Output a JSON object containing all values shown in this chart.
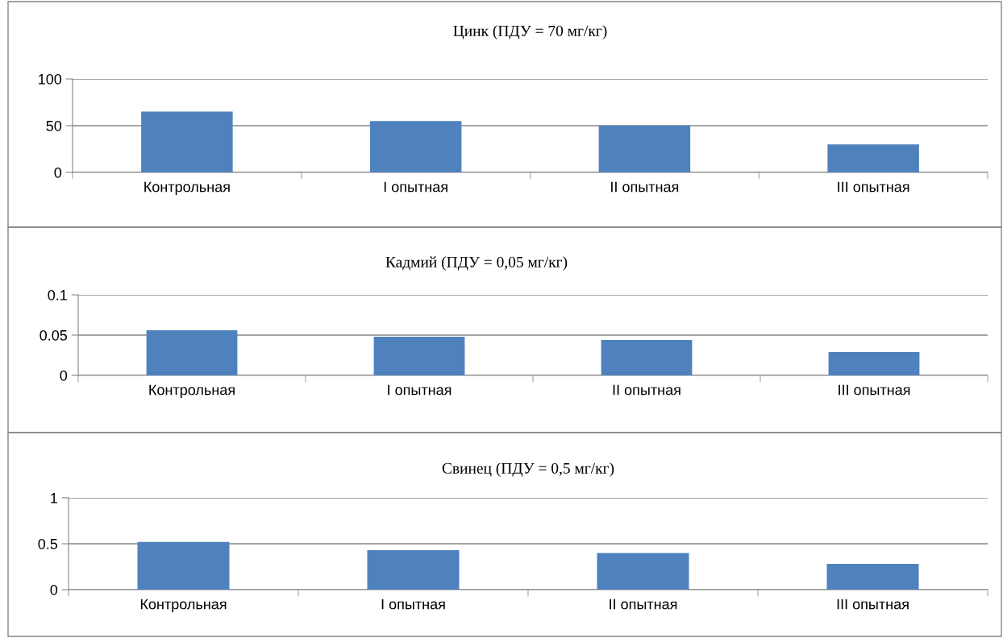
{
  "chart_data": [
    {
      "type": "bar",
      "title": "Цинк (ПДУ = 70 мг/кг)",
      "categories": [
        "Контрольная",
        "I опытная",
        "II опытная",
        "III опытная"
      ],
      "values": [
        65,
        55,
        50,
        30
      ],
      "color": "#4f81bd",
      "ylim": [
        0,
        100
      ],
      "yticks": [
        0,
        50,
        100
      ],
      "grid": "y",
      "legend": false
    },
    {
      "type": "bar",
      "title": "Кадмий (ПДУ = 0,05 мг/кг)",
      "categories": [
        "Контрольная",
        "I опытная",
        "II опытная",
        "III опытная"
      ],
      "values": [
        0.056,
        0.048,
        0.044,
        0.029
      ],
      "color": "#4f81bd",
      "ylim": [
        0,
        0.1
      ],
      "yticks": [
        0,
        0.05,
        0.1
      ],
      "grid": "y",
      "legend": false
    },
    {
      "type": "bar",
      "title": "Свинец (ПДУ = 0,5 мг/кг)",
      "categories": [
        "Контрольная",
        "I опытная",
        "II опытная",
        "III опытная"
      ],
      "values": [
        0.52,
        0.43,
        0.4,
        0.28
      ],
      "color": "#4f81bd",
      "ylim": [
        0,
        1
      ],
      "yticks": [
        0,
        0.5,
        1
      ],
      "grid": "y",
      "legend": false
    }
  ]
}
